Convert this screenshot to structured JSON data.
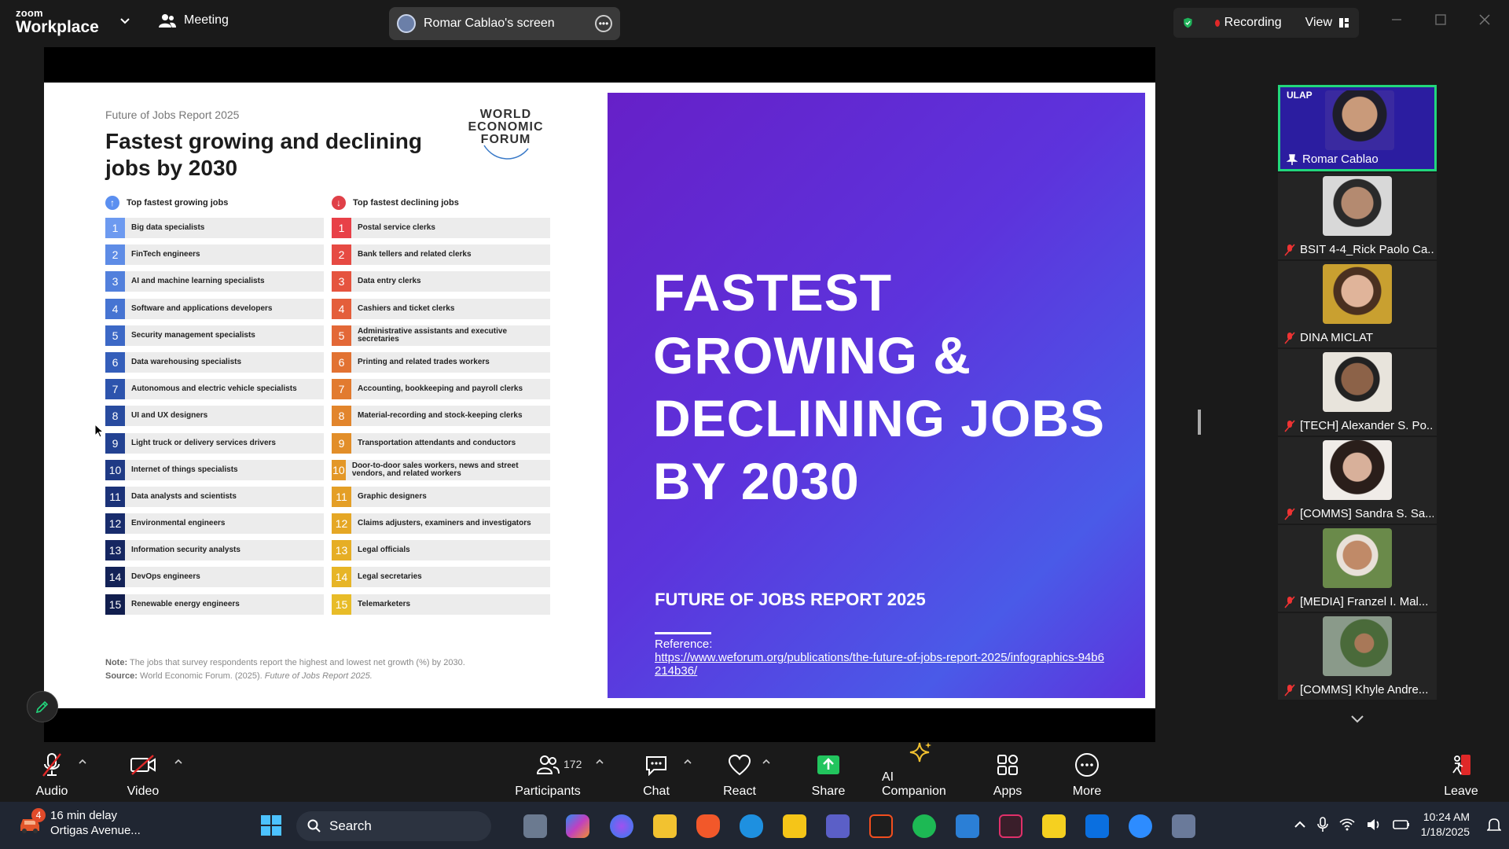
{
  "app": {
    "brand_top": "zoom",
    "brand_name": "Workplace",
    "meeting_label": "Meeting"
  },
  "screen_share": {
    "label": "Romar Cablao's screen"
  },
  "status": {
    "recording_label": "Recording",
    "view_label": "View"
  },
  "slide": {
    "kicker": "Future of Jobs Report 2025",
    "title": "Fastest growing and declining jobs by 2030",
    "org": [
      "WORLD",
      "ECONOMIC",
      "FORUM"
    ],
    "growing_header": "Top fastest growing jobs",
    "declining_header": "Top fastest declining jobs",
    "growing": [
      {
        "n": "1",
        "label": "Big data specialists"
      },
      {
        "n": "2",
        "label": "FinTech engineers"
      },
      {
        "n": "3",
        "label": "AI and machine learning specialists"
      },
      {
        "n": "4",
        "label": "Software and applications developers"
      },
      {
        "n": "5",
        "label": "Security management specialists"
      },
      {
        "n": "6",
        "label": "Data warehousing specialists"
      },
      {
        "n": "7",
        "label": "Autonomous and electric vehicle specialists"
      },
      {
        "n": "8",
        "label": "UI and UX designers"
      },
      {
        "n": "9",
        "label": "Light truck or delivery services drivers"
      },
      {
        "n": "10",
        "label": "Internet of things specialists"
      },
      {
        "n": "11",
        "label": "Data analysts and scientists"
      },
      {
        "n": "12",
        "label": "Environmental engineers"
      },
      {
        "n": "13",
        "label": "Information security analysts"
      },
      {
        "n": "14",
        "label": "DevOps engineers"
      },
      {
        "n": "15",
        "label": "Renewable energy engineers"
      }
    ],
    "declining": [
      {
        "n": "1",
        "label": "Postal service clerks"
      },
      {
        "n": "2",
        "label": "Bank tellers and related clerks"
      },
      {
        "n": "3",
        "label": "Data entry clerks"
      },
      {
        "n": "4",
        "label": "Cashiers and ticket clerks"
      },
      {
        "n": "5",
        "label": "Administrative assistants and executive secretaries"
      },
      {
        "n": "6",
        "label": "Printing and related trades workers"
      },
      {
        "n": "7",
        "label": "Accounting, bookkeeping and payroll clerks"
      },
      {
        "n": "8",
        "label": "Material-recording and stock-keeping clerks"
      },
      {
        "n": "9",
        "label": "Transportation attendants and conductors"
      },
      {
        "n": "10",
        "label": "Door-to-door sales workers, news and street vendors, and related workers"
      },
      {
        "n": "11",
        "label": "Graphic designers"
      },
      {
        "n": "12",
        "label": "Claims adjusters, examiners and investigators"
      },
      {
        "n": "13",
        "label": "Legal officials"
      },
      {
        "n": "14",
        "label": "Legal secretaries"
      },
      {
        "n": "15",
        "label": "Telemarketers"
      }
    ],
    "note_label": "Note:",
    "note_text": "The jobs that survey respondents report the highest and lowest net growth (%) by 2030.",
    "source_label": "Source:",
    "source_text": "World Economic Forum. (2025).",
    "source_italic": "Future of Jobs Report 2025.",
    "big_title": [
      "FASTEST",
      "GROWING &",
      "DECLINING JOBS",
      "BY 2030"
    ],
    "report": "FUTURE OF JOBS REPORT 2025",
    "reference_label": "Reference:",
    "reference_link": "https://www.weforum.org/publications/the-future-of-jobs-report-2025/infographics-94b6214b36/"
  },
  "participants": {
    "ulap": "ULAP",
    "tiles": [
      {
        "name": "Romar Cablao",
        "active": true
      },
      {
        "name": "BSIT 4-4_Rick Paolo Ca..."
      },
      {
        "name": "DINA MICLAT"
      },
      {
        "name": "[TECH] Alexander S. Po..."
      },
      {
        "name": "[COMMS] Sandra S. Sa..."
      },
      {
        "name": "[MEDIA] Franzel I. Mal..."
      },
      {
        "name": "[COMMS] Khyle Andre..."
      }
    ]
  },
  "toolbar": {
    "audio": "Audio",
    "video": "Video",
    "participants": "Participants",
    "participant_count": "172",
    "chat": "Chat",
    "react": "React",
    "share": "Share",
    "ai": "AI Companion",
    "apps": "Apps",
    "more": "More",
    "leave": "Leave"
  },
  "taskbar": {
    "weather_badge": "4",
    "weather_line1": "16 min delay",
    "weather_line2": "Ortigas Avenue...",
    "search": "Search",
    "time": "10:24 AM",
    "date": "1/18/2025"
  },
  "colors": {
    "growing_shades": [
      "#6d9af0",
      "#5e8ce6",
      "#5280dc",
      "#4674d2",
      "#3c68c6",
      "#345eba",
      "#2d54ad",
      "#284b9f",
      "#234292",
      "#1f3a85",
      "#1b3278",
      "#182c6c",
      "#152661",
      "#132257",
      "#111e4e"
    ],
    "declining_shades": [
      "#e84048",
      "#e64a43",
      "#e5543f",
      "#e45e3b",
      "#e36837",
      "#e27232",
      "#e27b2f",
      "#e2852c",
      "#e28e29",
      "#e39727",
      "#e49f26",
      "#e5a725",
      "#e6ae25",
      "#e7b526",
      "#e8bc28"
    ],
    "accent_green": "#22d67c",
    "recording_red": "#e02828"
  }
}
